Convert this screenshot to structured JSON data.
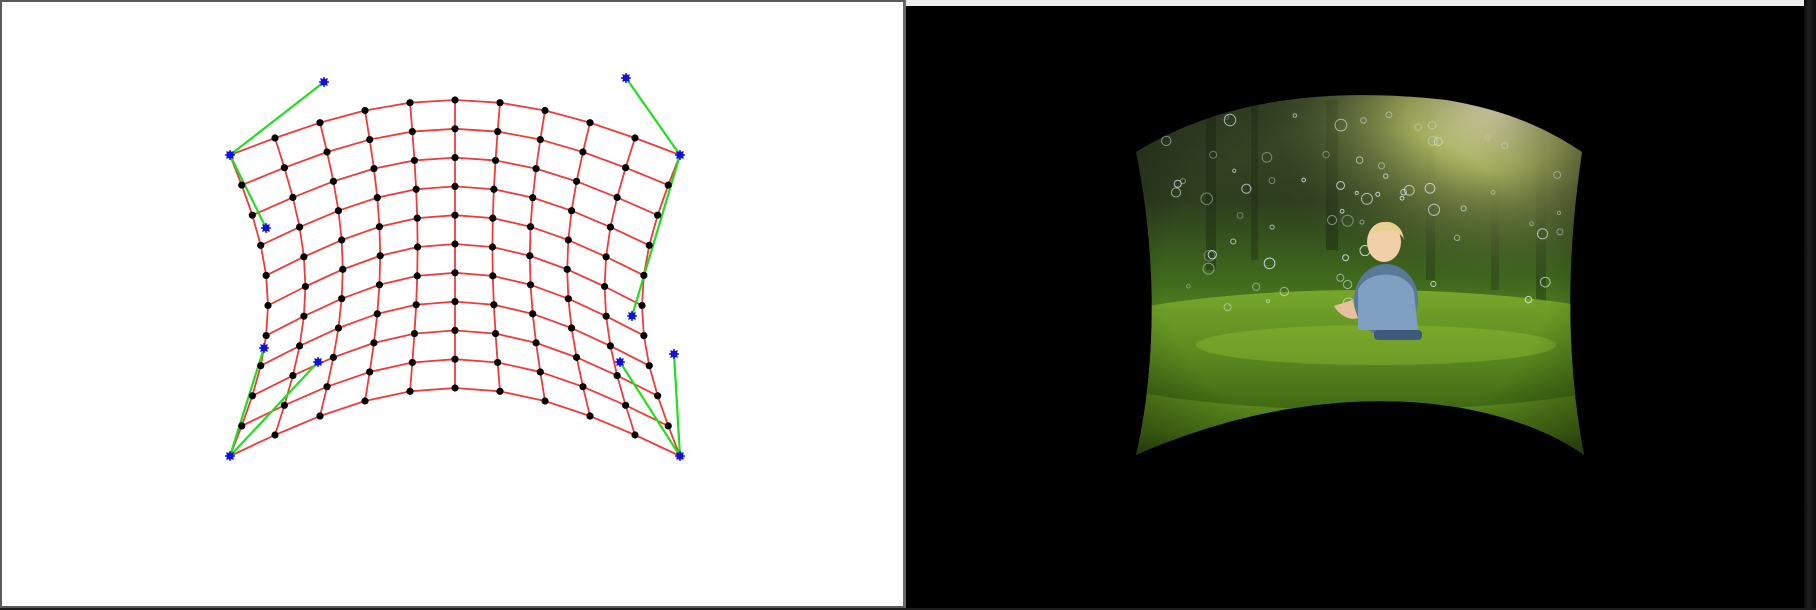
{
  "left_view": {
    "rows": 11,
    "cols": 11,
    "colors": {
      "grid_line": "#ee3b3b",
      "grid_node": "#000000",
      "control_point": "#1010e0",
      "handle_line": "#22dd22",
      "background": "#ffffff"
    }
  },
  "right_view": {
    "image_subject": "child-among-bubbles-photo",
    "colors": {
      "background": "#000000",
      "grass": "#5f8f1e",
      "forest": "#2d3d1e",
      "sunlight": "#f4e6b0"
    }
  }
}
